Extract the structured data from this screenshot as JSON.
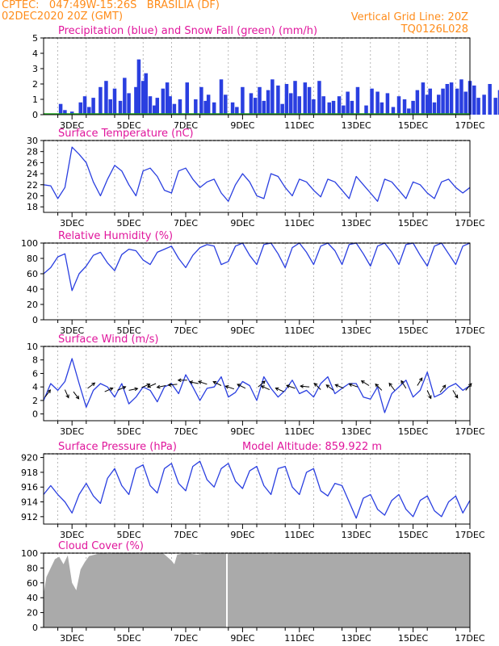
{
  "header": {
    "line1_left": "CPTEC:   047:49W-15:26S   BRASILIA (DF)",
    "line2_left": "02DEC2020 20Z (GMT)",
    "line1_right": "Vertical Grid Line: 20Z",
    "line2_right": "TQ0126L028",
    "color_header": "#ff8c1a",
    "color_title": "#e0169c",
    "color_line": "#2a3fe0",
    "color_snow": "#22aa22",
    "color_cloud": "#aaaaaa"
  },
  "x_ticks": [
    "3DEC",
    "5DEC",
    "7DEC",
    "9DEC",
    "11DEC",
    "13DEC",
    "15DEC",
    "17DEC"
  ],
  "chart_data": [
    {
      "type": "bar",
      "title": "Precipitation (blue) and Snow Fall (green) (mm/h)",
      "ylim": [
        0,
        5
      ],
      "yticks": [
        0,
        1,
        2,
        3,
        4,
        5
      ],
      "x": [
        0.6,
        0.75,
        1.0,
        1.3,
        1.45,
        1.6,
        1.75,
        2.0,
        2.2,
        2.35,
        2.5,
        2.7,
        2.85,
        3.0,
        3.25,
        3.35,
        3.5,
        3.6,
        3.75,
        3.9,
        4.0,
        4.2,
        4.35,
        4.45,
        4.6,
        4.8,
        5.05,
        5.35,
        5.55,
        5.7,
        5.8,
        6.0,
        6.25,
        6.4,
        6.65,
        6.8,
        7.0,
        7.3,
        7.45,
        7.6,
        7.75,
        7.9,
        8.05,
        8.25,
        8.4,
        8.55,
        8.7,
        8.85,
        9.0,
        9.2,
        9.35,
        9.5,
        9.7,
        9.85,
        10.05,
        10.2,
        10.4,
        10.55,
        10.7,
        10.85,
        11.05,
        11.35,
        11.55,
        11.75,
        11.9,
        12.1,
        12.3,
        12.5,
        12.7,
        12.85,
        13.0,
        13.15,
        13.35,
        13.5,
        13.6,
        13.75,
        13.9,
        14.05,
        14.2,
        14.35,
        14.55,
        14.7,
        14.85,
        15.0,
        15.15,
        15.3,
        15.5,
        15.7,
        15.9,
        16.05,
        16.25,
        16.45,
        16.65,
        16.85
      ],
      "values": [
        0.7,
        0.3,
        0.2,
        0.8,
        1.2,
        0.5,
        1.1,
        1.8,
        2.2,
        1.0,
        1.7,
        0.9,
        2.4,
        1.4,
        1.8,
        3.6,
        2.2,
        2.7,
        1.2,
        0.6,
        1.1,
        1.7,
        2.1,
        1.2,
        0.7,
        1.0,
        2.1,
        1.0,
        1.8,
        0.9,
        1.3,
        0.8,
        2.3,
        1.3,
        0.8,
        0.5,
        1.8,
        1.4,
        1.1,
        1.8,
        0.9,
        1.6,
        2.3,
        1.9,
        0.7,
        2.0,
        1.4,
        2.2,
        1.2,
        2.1,
        1.8,
        1.0,
        2.2,
        1.2,
        0.8,
        0.9,
        1.2,
        0.6,
        1.5,
        0.9,
        1.8,
        0.6,
        1.7,
        1.5,
        0.8,
        1.4,
        0.5,
        1.2,
        1.0,
        0.4,
        0.9,
        1.6,
        2.1,
        1.3,
        1.7,
        0.8,
        1.3,
        1.7,
        2.0,
        2.1,
        1.7,
        2.3,
        1.5,
        2.2,
        1.9,
        1.1,
        1.3,
        2.0,
        1.1,
        1.6,
        1.2,
        0.9,
        0.6,
        0.4
      ],
      "snow": 0
    },
    {
      "type": "line",
      "title": "Surface Temperature (nC)",
      "ylim": [
        17,
        30
      ],
      "yticks": [
        18,
        20,
        22,
        24,
        26,
        28,
        30
      ],
      "x": [
        0,
        0.25,
        0.5,
        0.75,
        1.0,
        1.25,
        1.5,
        1.75,
        2.0,
        2.25,
        2.5,
        2.75,
        3.0,
        3.25,
        3.5,
        3.75,
        4.0,
        4.25,
        4.5,
        4.75,
        5.0,
        5.25,
        5.5,
        5.75,
        6.0,
        6.25,
        6.5,
        6.75,
        7.0,
        7.25,
        7.5,
        7.75,
        8.0,
        8.25,
        8.5,
        8.75,
        9.0,
        9.25,
        9.5,
        9.75,
        10.0,
        10.25,
        10.5,
        10.75,
        11.0,
        11.25,
        11.5,
        11.75,
        12.0,
        12.25,
        12.5,
        12.75,
        13.0,
        13.25,
        13.5,
        13.75,
        14.0,
        14.25,
        14.5,
        14.75,
        15.0
      ],
      "values": [
        22.0,
        21.8,
        19.5,
        21.5,
        28.8,
        27.5,
        26.0,
        22.5,
        20.0,
        23.0,
        25.5,
        24.5,
        22.0,
        20.0,
        24.5,
        25.0,
        23.5,
        21.0,
        20.5,
        24.5,
        25.0,
        23.0,
        21.5,
        22.5,
        23.0,
        20.5,
        19.0,
        22.0,
        24.0,
        22.5,
        20.0,
        19.5,
        24.0,
        23.5,
        21.5,
        20.0,
        23.0,
        22.5,
        21.0,
        19.8,
        23.0,
        22.5,
        21.0,
        19.5,
        23.5,
        22.0,
        20.5,
        19.0,
        23.0,
        22.5,
        21.0,
        19.5,
        22.5,
        22.0,
        20.5,
        19.5,
        22.5,
        23.0,
        21.5,
        20.5,
        21.5
      ]
    },
    {
      "type": "line",
      "title": "Relative Humidity (%)",
      "ylim": [
        0,
        100
      ],
      "yticks": [
        0,
        20,
        40,
        60,
        80,
        100
      ],
      "x": [
        0,
        0.25,
        0.5,
        0.75,
        1.0,
        1.25,
        1.5,
        1.75,
        2.0,
        2.25,
        2.5,
        2.75,
        3.0,
        3.25,
        3.5,
        3.75,
        4.0,
        4.25,
        4.5,
        4.75,
        5.0,
        5.25,
        5.5,
        5.75,
        6.0,
        6.25,
        6.5,
        6.75,
        7.0,
        7.25,
        7.5,
        7.75,
        8.0,
        8.25,
        8.5,
        8.75,
        9.0,
        9.25,
        9.5,
        9.75,
        10.0,
        10.25,
        10.5,
        10.75,
        11.0,
        11.25,
        11.5,
        11.75,
        12.0,
        12.25,
        12.5,
        12.75,
        13.0,
        13.25,
        13.5,
        13.75,
        14.0,
        14.25,
        14.5,
        14.75,
        15.0
      ],
      "values": [
        60,
        68,
        82,
        86,
        38,
        60,
        70,
        84,
        88,
        74,
        64,
        85,
        92,
        90,
        78,
        72,
        88,
        92,
        96,
        80,
        68,
        84,
        94,
        98,
        96,
        72,
        76,
        96,
        100,
        84,
        72,
        98,
        100,
        86,
        68,
        94,
        100,
        88,
        72,
        96,
        100,
        90,
        72,
        98,
        100,
        86,
        70,
        96,
        100,
        88,
        72,
        98,
        100,
        84,
        70,
        96,
        100,
        86,
        72,
        96,
        100
      ]
    },
    {
      "type": "line",
      "title": "Surface Wind (m/s)",
      "ylim": [
        -1,
        10
      ],
      "yticks": [
        0,
        2,
        4,
        6,
        8,
        10
      ],
      "x": [
        0,
        0.25,
        0.5,
        0.75,
        1.0,
        1.25,
        1.5,
        1.75,
        2.0,
        2.25,
        2.5,
        2.75,
        3.0,
        3.25,
        3.5,
        3.75,
        4.0,
        4.25,
        4.5,
        4.75,
        5.0,
        5.25,
        5.5,
        5.75,
        6.0,
        6.25,
        6.5,
        6.75,
        7.0,
        7.25,
        7.5,
        7.75,
        8.0,
        8.25,
        8.5,
        8.75,
        9.0,
        9.25,
        9.5,
        9.75,
        10.0,
        10.25,
        10.5,
        10.75,
        11.0,
        11.25,
        11.5,
        11.75,
        12.0,
        12.25,
        12.5,
        12.75,
        13.0,
        13.25,
        13.5,
        13.75,
        14.0,
        14.25,
        14.5,
        14.75,
        15.0
      ],
      "values": [
        2.0,
        4.5,
        3.5,
        4.8,
        8.2,
        4.5,
        1.0,
        3.5,
        4.5,
        4.0,
        2.5,
        4.5,
        1.5,
        2.5,
        4.0,
        3.5,
        1.8,
        4.0,
        4.5,
        3.0,
        5.8,
        4.0,
        2.0,
        3.8,
        4.0,
        5.5,
        2.5,
        3.2,
        4.8,
        4.2,
        2.0,
        5.5,
        3.8,
        2.5,
        3.5,
        5.0,
        3.0,
        3.5,
        2.5,
        4.5,
        5.5,
        3.0,
        3.8,
        4.5,
        4.5,
        2.5,
        2.2,
        4.0,
        0.2,
        3.0,
        4.0,
        5.0,
        2.5,
        3.5,
        6.2,
        2.5,
        3.0,
        4.0,
        4.5,
        3.5,
        4.2
      ],
      "arrows": {
        "x": [
          0.05,
          0.75,
          1.05,
          1.55,
          2.15,
          2.6,
          3.0,
          3.45,
          3.95,
          4.3,
          4.7,
          5.05,
          5.45,
          5.75,
          6.25,
          6.7,
          7.1,
          7.55,
          7.95,
          8.45,
          8.85,
          9.35,
          9.75,
          10.2,
          10.55,
          11.05,
          11.45,
          11.9,
          12.35,
          12.75,
          13.15,
          13.5,
          13.95,
          14.4,
          14.85
        ],
        "y": [
          2.5,
          3.6,
          3.3,
          3.8,
          3.3,
          3.5,
          3.5,
          3.9,
          4.5,
          4.2,
          4.4,
          5.0,
          4.5,
          4.4,
          4.2,
          3.7,
          3.8,
          4.0,
          3.6,
          3.3,
          3.8,
          4.0,
          3.6,
          3.5,
          3.8,
          4.0,
          4.2,
          3.5,
          3.5,
          3.8,
          4.2,
          3.5,
          3.2,
          3.5,
          3.5
        ],
        "u": [
          0.6,
          0.4,
          0.6,
          0.8,
          0.9,
          0.9,
          1.0,
          0.9,
          -0.9,
          -1.0,
          -1.0,
          -1.0,
          -1.0,
          -0.9,
          -0.8,
          -0.9,
          -0.8,
          0.7,
          -0.9,
          -0.9,
          -0.9,
          -1.0,
          -0.7,
          -0.8,
          -0.9,
          -0.9,
          -0.8,
          -0.7,
          -0.6,
          -0.5,
          0.5,
          0.4,
          0.6,
          0.5,
          0.6
        ],
        "v": [
          0.8,
          -0.9,
          -0.8,
          0.6,
          0.4,
          0.4,
          0.2,
          0.4,
          -0.4,
          -0.2,
          -0.1,
          0.0,
          0.2,
          0.3,
          0.4,
          0.3,
          0.4,
          0.6,
          0.4,
          0.4,
          0.3,
          0.1,
          0.7,
          0.6,
          0.4,
          0.3,
          0.5,
          0.7,
          0.8,
          0.8,
          0.8,
          -0.9,
          0.8,
          -0.8,
          0.7
        ]
      }
    },
    {
      "type": "line",
      "title": "Surface Pressure (hPa)",
      "subtitle": "Model Altitude: 859.922 m",
      "ylim": [
        911,
        920.5
      ],
      "yticks": [
        912,
        914,
        916,
        918,
        920
      ],
      "x": [
        0,
        0.25,
        0.5,
        0.75,
        1.0,
        1.25,
        1.5,
        1.75,
        2.0,
        2.25,
        2.5,
        2.75,
        3.0,
        3.25,
        3.5,
        3.75,
        4.0,
        4.25,
        4.5,
        4.75,
        5.0,
        5.25,
        5.5,
        5.75,
        6.0,
        6.25,
        6.5,
        6.75,
        7.0,
        7.25,
        7.5,
        7.75,
        8.0,
        8.25,
        8.5,
        8.75,
        9.0,
        9.25,
        9.5,
        9.75,
        10.0,
        10.25,
        10.5,
        10.75,
        11.0,
        11.25,
        11.5,
        11.75,
        12.0,
        12.25,
        12.5,
        12.75,
        13.0,
        13.25,
        13.5,
        13.75,
        14.0,
        14.25,
        14.5,
        14.75,
        15.0
      ],
      "values": [
        915.0,
        916.2,
        915.0,
        914.0,
        912.5,
        915.0,
        916.5,
        914.8,
        913.8,
        917.2,
        918.5,
        916.2,
        915.0,
        918.5,
        919.0,
        916.2,
        915.2,
        918.5,
        919.2,
        916.5,
        915.5,
        918.8,
        919.5,
        917.0,
        916.0,
        918.5,
        919.2,
        916.8,
        915.8,
        918.2,
        918.8,
        916.2,
        915.0,
        918.5,
        918.8,
        916.0,
        915.0,
        918.0,
        918.5,
        915.5,
        914.8,
        916.5,
        916.2,
        914.0,
        911.8,
        914.5,
        915.0,
        913.0,
        912.2,
        914.2,
        915.0,
        913.0,
        912.0,
        914.2,
        914.8,
        912.8,
        912.0,
        914.0,
        914.8,
        912.5,
        914.2
      ]
    },
    {
      "type": "area",
      "title": "Cloud Cover (%)",
      "ylim": [
        0,
        100
      ],
      "yticks": [
        0,
        20,
        40,
        60,
        80,
        100
      ],
      "x": [
        0,
        0.1,
        0.25,
        0.4,
        0.55,
        0.7,
        0.85,
        1.0,
        1.15,
        1.3,
        1.45,
        1.6,
        1.8,
        2.0,
        2.3,
        2.6,
        3.0,
        3.4,
        3.8,
        4.2,
        4.5,
        4.6,
        4.7,
        5.0,
        5.4,
        5.8,
        6.2,
        6.6,
        7.0,
        7.5,
        8.0,
        8.5,
        9.0,
        10.0,
        11.0,
        12.0,
        13.0,
        14.0,
        15.0
      ],
      "values": [
        45,
        68,
        80,
        92,
        95,
        85,
        97,
        60,
        50,
        78,
        88,
        96,
        98,
        100,
        99,
        100,
        100,
        99,
        100,
        100,
        90,
        85,
        98,
        100,
        98,
        100,
        100,
        100,
        100,
        100,
        99,
        100,
        100,
        100,
        100,
        100,
        100,
        100,
        100
      ],
      "gaps_x": [
        6.45
      ]
    }
  ]
}
